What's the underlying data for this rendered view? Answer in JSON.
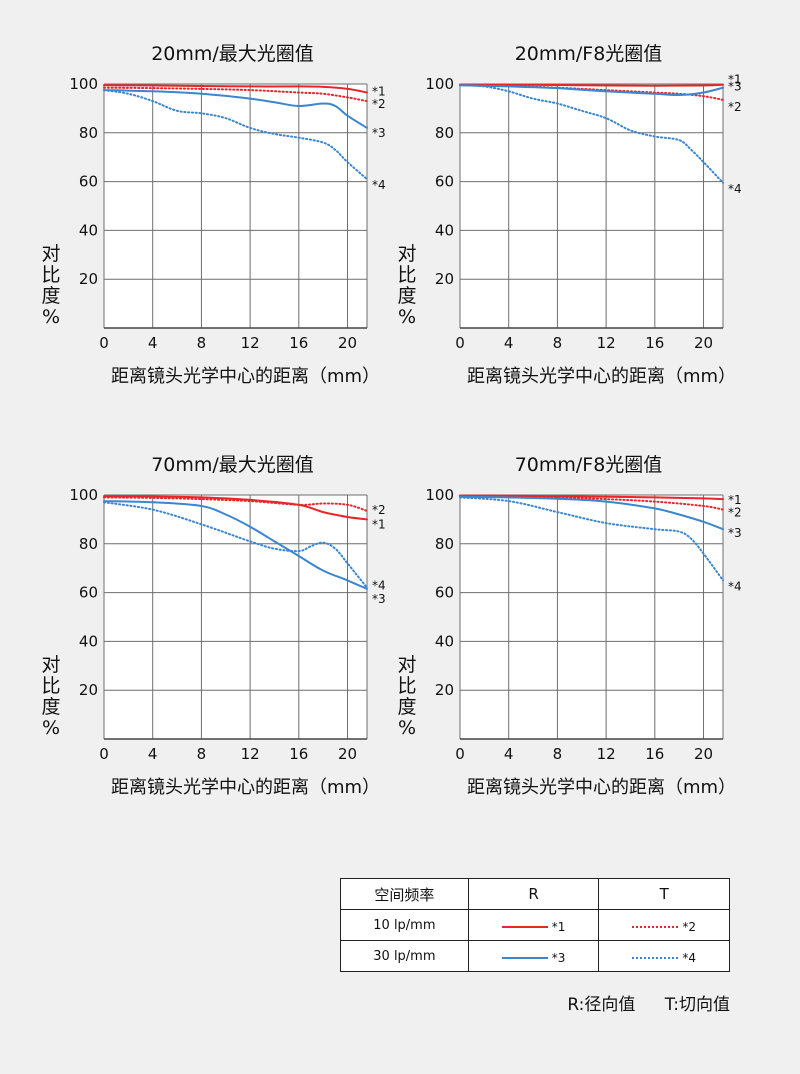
{
  "chart_data": [
    {
      "type": "line",
      "title": "20mm/最大光圈值",
      "xlabel": "距离镜头光学中心的距离（mm）",
      "ylabel": "对比度%",
      "xticks": [
        0,
        4,
        8,
        12,
        16,
        20
      ],
      "yticks": [
        20,
        40,
        60,
        80,
        100
      ],
      "xlim": [
        0,
        21.6
      ],
      "ylim": [
        0,
        100
      ],
      "grid": true,
      "series": [
        {
          "name": "*1",
          "style": "solid",
          "color": "#e8262a",
          "points": [
            [
              0,
              99.5
            ],
            [
              4,
              99.4
            ],
            [
              8,
              99.2
            ],
            [
              12,
              99
            ],
            [
              16,
              99
            ],
            [
              18,
              98.8
            ],
            [
              20,
              98
            ],
            [
              21.6,
              96.5
            ]
          ]
        },
        {
          "name": "*2",
          "style": "dotted",
          "color": "#e8262a",
          "points": [
            [
              0,
              98.5
            ],
            [
              4,
              98.3
            ],
            [
              8,
              98
            ],
            [
              12,
              97.5
            ],
            [
              16,
              96.5
            ],
            [
              18,
              96
            ],
            [
              20,
              94.5
            ],
            [
              21.6,
              93
            ]
          ]
        },
        {
          "name": "*3",
          "style": "solid",
          "color": "#3a86d0",
          "points": [
            [
              0,
              97.5
            ],
            [
              4,
              97
            ],
            [
              8,
              96
            ],
            [
              12,
              94
            ],
            [
              14,
              92.5
            ],
            [
              16,
              91
            ],
            [
              18,
              92
            ],
            [
              19,
              91
            ],
            [
              20,
              87
            ],
            [
              21.6,
              82
            ]
          ]
        },
        {
          "name": "*4",
          "style": "dotted",
          "color": "#3a86d0",
          "points": [
            [
              0,
              97.5
            ],
            [
              2,
              96
            ],
            [
              4,
              93
            ],
            [
              6,
              89
            ],
            [
              8,
              88
            ],
            [
              10,
              86
            ],
            [
              12,
              82
            ],
            [
              14,
              79.5
            ],
            [
              16,
              78
            ],
            [
              18,
              76
            ],
            [
              19,
              73
            ],
            [
              20,
              68
            ],
            [
              21.6,
              61
            ]
          ]
        }
      ]
    },
    {
      "type": "line",
      "title": "20mm/F8光圈值",
      "xlabel": "距离镜头光学中心的距离（mm）",
      "ylabel": "对比度%",
      "xticks": [
        0,
        4,
        8,
        12,
        16,
        20
      ],
      "yticks": [
        20,
        40,
        60,
        80,
        100
      ],
      "xlim": [
        0,
        21.6
      ],
      "ylim": [
        0,
        100
      ],
      "grid": true,
      "series": [
        {
          "name": "*1",
          "style": "solid",
          "color": "#e8262a",
          "points": [
            [
              0,
              99.8
            ],
            [
              4,
              99.7
            ],
            [
              8,
              99.6
            ],
            [
              12,
              99.4
            ],
            [
              16,
              99.3
            ],
            [
              20,
              99.4
            ],
            [
              21.6,
              99.7
            ]
          ]
        },
        {
          "name": "*2",
          "style": "dotted",
          "color": "#e8262a",
          "points": [
            [
              0,
              99.5
            ],
            [
              4,
              99.2
            ],
            [
              8,
              98.5
            ],
            [
              12,
              97.5
            ],
            [
              16,
              96.5
            ],
            [
              18,
              96
            ],
            [
              20,
              95
            ],
            [
              21.6,
              93.5
            ]
          ]
        },
        {
          "name": "*3",
          "style": "solid",
          "color": "#3a86d0",
          "points": [
            [
              0,
              99.5
            ],
            [
              4,
              99
            ],
            [
              8,
              98.3
            ],
            [
              12,
              97
            ],
            [
              16,
              96
            ],
            [
              18,
              95.5
            ],
            [
              20,
              96.5
            ],
            [
              21.6,
              98.5
            ]
          ]
        },
        {
          "name": "*4",
          "style": "dotted",
          "color": "#3a86d0",
          "points": [
            [
              0,
              99.5
            ],
            [
              2,
              99
            ],
            [
              4,
              97
            ],
            [
              6,
              94
            ],
            [
              8,
              92
            ],
            [
              10,
              89
            ],
            [
              12,
              86
            ],
            [
              14,
              81
            ],
            [
              16,
              78.5
            ],
            [
              18,
              77
            ],
            [
              19,
              73
            ],
            [
              20,
              68
            ],
            [
              21.6,
              59.5
            ]
          ]
        }
      ]
    },
    {
      "type": "line",
      "title": "70mm/最大光圈值",
      "xlabel": "距离镜头光学中心的距离（mm）",
      "ylabel": "对比度%",
      "xticks": [
        0,
        4,
        8,
        12,
        16,
        20
      ],
      "yticks": [
        20,
        40,
        60,
        80,
        100
      ],
      "xlim": [
        0,
        21.6
      ],
      "ylim": [
        0,
        100
      ],
      "grid": true,
      "series": [
        {
          "name": "*1",
          "style": "solid",
          "color": "#e8262a",
          "points": [
            [
              0,
              99.5
            ],
            [
              4,
              99.4
            ],
            [
              8,
              99
            ],
            [
              12,
              98
            ],
            [
              16,
              96
            ],
            [
              18,
              93
            ],
            [
              20,
              91
            ],
            [
              21.6,
              90
            ]
          ]
        },
        {
          "name": "*2",
          "style": "dotted",
          "color": "#e8262a",
          "points": [
            [
              0,
              99
            ],
            [
              4,
              98.8
            ],
            [
              8,
              98.3
            ],
            [
              12,
              97.5
            ],
            [
              16,
              96
            ],
            [
              18,
              96.5
            ],
            [
              20,
              96
            ],
            [
              21.6,
              93.5
            ]
          ]
        },
        {
          "name": "*3",
          "style": "solid",
          "color": "#3a86d0",
          "points": [
            [
              0,
              97.5
            ],
            [
              4,
              97
            ],
            [
              8,
              95.5
            ],
            [
              10,
              92
            ],
            [
              12,
              87
            ],
            [
              14,
              81
            ],
            [
              16,
              75
            ],
            [
              18,
              69
            ],
            [
              20,
              65
            ],
            [
              21.6,
              61.5
            ]
          ]
        },
        {
          "name": "*4",
          "style": "dotted",
          "color": "#3a86d0",
          "points": [
            [
              0,
              97
            ],
            [
              4,
              94
            ],
            [
              8,
              88
            ],
            [
              12,
              81
            ],
            [
              14,
              78
            ],
            [
              16,
              77
            ],
            [
              17,
              79
            ],
            [
              18,
              80.5
            ],
            [
              19,
              78
            ],
            [
              20,
              72
            ],
            [
              21.6,
              62
            ]
          ]
        }
      ]
    },
    {
      "type": "line",
      "title": "70mm/F8光圈值",
      "xlabel": "距离镜头光学中心的距离（mm）",
      "ylabel": "对比度%",
      "xticks": [
        0,
        4,
        8,
        12,
        16,
        20
      ],
      "yticks": [
        20,
        40,
        60,
        80,
        100
      ],
      "xlim": [
        0,
        21.6
      ],
      "ylim": [
        0,
        100
      ],
      "grid": true,
      "series": [
        {
          "name": "*1",
          "style": "solid",
          "color": "#e8262a",
          "points": [
            [
              0,
              99.8
            ],
            [
              4,
              99.7
            ],
            [
              8,
              99.5
            ],
            [
              12,
              99.3
            ],
            [
              16,
              99
            ],
            [
              20,
              98.6
            ],
            [
              21.6,
              98.3
            ]
          ]
        },
        {
          "name": "*2",
          "style": "dotted",
          "color": "#e8262a",
          "points": [
            [
              0,
              99.5
            ],
            [
              4,
              99.3
            ],
            [
              8,
              99
            ],
            [
              12,
              98.3
            ],
            [
              16,
              97.3
            ],
            [
              20,
              95.5
            ],
            [
              21.6,
              94
            ]
          ]
        },
        {
          "name": "*3",
          "style": "solid",
          "color": "#3a86d0",
          "points": [
            [
              0,
              99.3
            ],
            [
              4,
              99
            ],
            [
              8,
              98.5
            ],
            [
              12,
              97.3
            ],
            [
              16,
              94.5
            ],
            [
              18,
              92
            ],
            [
              20,
              89
            ],
            [
              21.6,
              86
            ]
          ]
        },
        {
          "name": "*4",
          "style": "dotted",
          "color": "#3a86d0",
          "points": [
            [
              0,
              99
            ],
            [
              4,
              97.5
            ],
            [
              8,
              93
            ],
            [
              12,
              88.5
            ],
            [
              16,
              86
            ],
            [
              18,
              85
            ],
            [
              19,
              82
            ],
            [
              20,
              76
            ],
            [
              21.6,
              65
            ]
          ]
        }
      ]
    }
  ],
  "legend": {
    "header": {
      "label": "空间频率",
      "r": "R",
      "t": "T"
    },
    "rows": [
      {
        "freq": "10 lp/mm",
        "r_mark": "*1",
        "t_mark": "*2",
        "color": "#e8262a"
      },
      {
        "freq": "30 lp/mm",
        "r_mark": "*3",
        "t_mark": "*4",
        "color": "#3a86d0"
      }
    ],
    "note_r": "R:径向值",
    "note_t": "T:切向值"
  }
}
